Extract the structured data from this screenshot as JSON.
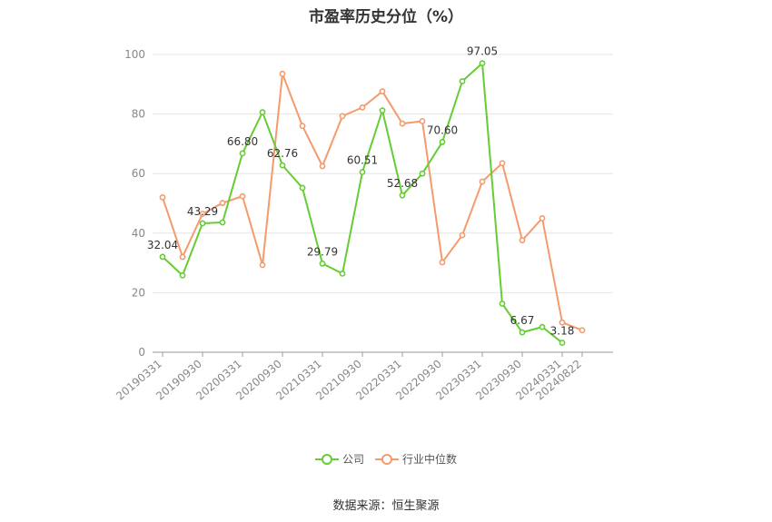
{
  "chart_data": {
    "type": "line",
    "title": "市盈率历史分位（%）",
    "source": "数据来源：恒生聚源",
    "ylim": [
      0,
      100
    ],
    "yticks": [
      0,
      20,
      40,
      60,
      80,
      100
    ],
    "grid": true,
    "legend_position": "bottom",
    "x": [
      "20190331",
      "20190630",
      "20190930",
      "20191231",
      "20200331",
      "20200630",
      "20200930",
      "20201231",
      "20210331",
      "20210630",
      "20210930",
      "20211231",
      "20220331",
      "20220630",
      "20220930",
      "20221231",
      "20230331",
      "20230630",
      "20230930",
      "20231231",
      "20240331",
      "20240822"
    ],
    "xtick_labels": [
      "20190331",
      "20190930",
      "20200331",
      "20200930",
      "20210331",
      "20210930",
      "20220331",
      "20220930",
      "20230331",
      "20230930",
      "20240331",
      "20240822"
    ],
    "series": [
      {
        "name": "公司",
        "color": "#66cc33",
        "values": [
          32.04,
          25.8,
          43.29,
          43.6,
          66.8,
          80.6,
          62.76,
          55.2,
          29.79,
          26.4,
          60.51,
          81.2,
          52.68,
          60.0,
          70.6,
          91.0,
          97.05,
          16.3,
          6.67,
          8.5,
          3.18,
          null
        ],
        "labels": [
          "32.04",
          null,
          "43.29",
          null,
          "66.80",
          null,
          "62.76",
          null,
          "29.79",
          null,
          "60.51",
          null,
          "52.68",
          null,
          "70.60",
          null,
          "97.05",
          null,
          "6.67",
          null,
          "3.18",
          null
        ]
      },
      {
        "name": "行业中位数",
        "color": "#f59a6c",
        "values": [
          52.0,
          32.0,
          46.5,
          50.1,
          52.4,
          29.3,
          93.5,
          76.0,
          62.5,
          79.3,
          82.2,
          87.6,
          76.8,
          77.6,
          30.2,
          39.3,
          57.3,
          63.5,
          37.6,
          45.0,
          10.0,
          7.4
        ],
        "labels": []
      }
    ]
  }
}
